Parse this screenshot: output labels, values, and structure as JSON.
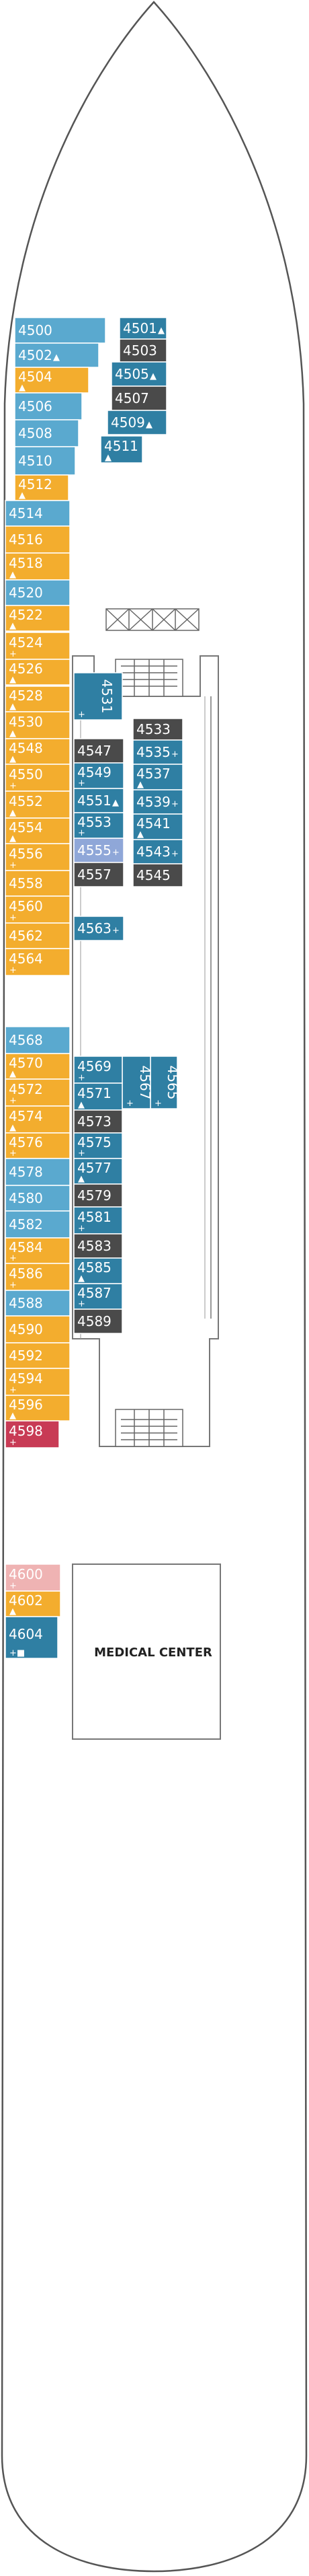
{
  "colors": {
    "blue": "#5aa9cf",
    "teal": "#2f7fa3",
    "dark": "#4a4a4a",
    "orange": "#f3ad2e",
    "pink": "#efb3b3",
    "red": "#c83b55",
    "lavender": "#8fa7d8",
    "hull": "#555555"
  },
  "areas": {
    "medical_center": "MEDICAL CENTER"
  },
  "cabins": [
    {
      "id": "4500",
      "color": "blue",
      "sym": ""
    },
    {
      "id": "4502",
      "color": "blue",
      "sym": "▲"
    },
    {
      "id": "4504",
      "color": "orange",
      "sym": "▲"
    },
    {
      "id": "4506",
      "color": "blue",
      "sym": ""
    },
    {
      "id": "4508",
      "color": "blue",
      "sym": ""
    },
    {
      "id": "4510",
      "color": "blue",
      "sym": ""
    },
    {
      "id": "4512",
      "color": "orange",
      "sym": "▲"
    },
    {
      "id": "4514",
      "color": "blue",
      "sym": ""
    },
    {
      "id": "4516",
      "color": "orange",
      "sym": ""
    },
    {
      "id": "4518",
      "color": "orange",
      "sym": "▲"
    },
    {
      "id": "4520",
      "color": "blue",
      "sym": ""
    },
    {
      "id": "4522",
      "color": "orange",
      "sym": "▲"
    },
    {
      "id": "4524",
      "color": "orange",
      "sym": "+"
    },
    {
      "id": "4526",
      "color": "orange",
      "sym": "▲"
    },
    {
      "id": "4528",
      "color": "orange",
      "sym": "▲"
    },
    {
      "id": "4530",
      "color": "orange",
      "sym": "▲"
    },
    {
      "id": "4548",
      "color": "orange",
      "sym": "▲"
    },
    {
      "id": "4550",
      "color": "orange",
      "sym": "+"
    },
    {
      "id": "4552",
      "color": "orange",
      "sym": "▲"
    },
    {
      "id": "4554",
      "color": "orange",
      "sym": "▲"
    },
    {
      "id": "4556",
      "color": "orange",
      "sym": "+"
    },
    {
      "id": "4558",
      "color": "orange",
      "sym": ""
    },
    {
      "id": "4560",
      "color": "orange",
      "sym": "+"
    },
    {
      "id": "4562",
      "color": "orange",
      "sym": ""
    },
    {
      "id": "4564",
      "color": "orange",
      "sym": "+"
    },
    {
      "id": "4568",
      "color": "blue",
      "sym": ""
    },
    {
      "id": "4570",
      "color": "orange",
      "sym": "▲"
    },
    {
      "id": "4572",
      "color": "orange",
      "sym": "+"
    },
    {
      "id": "4574",
      "color": "orange",
      "sym": "▲"
    },
    {
      "id": "4576",
      "color": "orange",
      "sym": "+"
    },
    {
      "id": "4578",
      "color": "blue",
      "sym": ""
    },
    {
      "id": "4580",
      "color": "blue",
      "sym": ""
    },
    {
      "id": "4582",
      "color": "blue",
      "sym": ""
    },
    {
      "id": "4584",
      "color": "orange",
      "sym": "+"
    },
    {
      "id": "4586",
      "color": "orange",
      "sym": "+"
    },
    {
      "id": "4588",
      "color": "blue",
      "sym": ""
    },
    {
      "id": "4590",
      "color": "orange",
      "sym": ""
    },
    {
      "id": "4592",
      "color": "orange",
      "sym": ""
    },
    {
      "id": "4594",
      "color": "orange",
      "sym": "+"
    },
    {
      "id": "4596",
      "color": "orange",
      "sym": "▲"
    },
    {
      "id": "4598",
      "color": "red",
      "sym": "+"
    },
    {
      "id": "4600",
      "color": "pink",
      "sym": "+"
    },
    {
      "id": "4602",
      "color": "orange",
      "sym": "▲"
    },
    {
      "id": "4604",
      "color": "teal",
      "sym": "+■"
    },
    {
      "id": "4501",
      "color": "teal",
      "sym": "▲"
    },
    {
      "id": "4503",
      "color": "dark",
      "sym": ""
    },
    {
      "id": "4505",
      "color": "teal",
      "sym": "▲"
    },
    {
      "id": "4507",
      "color": "dark",
      "sym": ""
    },
    {
      "id": "4509",
      "color": "teal",
      "sym": "▲"
    },
    {
      "id": "4511",
      "color": "teal",
      "sym": "▲"
    },
    {
      "id": "4531",
      "color": "teal",
      "sym": "+"
    },
    {
      "id": "4533",
      "color": "dark",
      "sym": ""
    },
    {
      "id": "4535",
      "color": "teal",
      "sym": "+"
    },
    {
      "id": "4537",
      "color": "teal",
      "sym": "▲"
    },
    {
      "id": "4539",
      "color": "teal",
      "sym": "+"
    },
    {
      "id": "4541",
      "color": "teal",
      "sym": "▲"
    },
    {
      "id": "4543",
      "color": "teal",
      "sym": "+"
    },
    {
      "id": "4545",
      "color": "dark",
      "sym": ""
    },
    {
      "id": "4547",
      "color": "dark",
      "sym": ""
    },
    {
      "id": "4549",
      "color": "teal",
      "sym": "+"
    },
    {
      "id": "4551",
      "color": "teal",
      "sym": "▲"
    },
    {
      "id": "4553",
      "color": "teal",
      "sym": "+"
    },
    {
      "id": "4555",
      "color": "lavender",
      "sym": "+"
    },
    {
      "id": "4557",
      "color": "dark",
      "sym": ""
    },
    {
      "id": "4563",
      "color": "teal",
      "sym": "+"
    },
    {
      "id": "4565",
      "color": "teal",
      "sym": "+"
    },
    {
      "id": "4567",
      "color": "teal",
      "sym": "+"
    },
    {
      "id": "4569",
      "color": "teal",
      "sym": "+"
    },
    {
      "id": "4571",
      "color": "teal",
      "sym": "▲"
    },
    {
      "id": "4573",
      "color": "dark",
      "sym": ""
    },
    {
      "id": "4575",
      "color": "teal",
      "sym": "+"
    },
    {
      "id": "4577",
      "color": "teal",
      "sym": "▲"
    },
    {
      "id": "4579",
      "color": "dark",
      "sym": ""
    },
    {
      "id": "4581",
      "color": "teal",
      "sym": "+"
    },
    {
      "id": "4583",
      "color": "dark",
      "sym": ""
    },
    {
      "id": "4585",
      "color": "teal",
      "sym": "▲"
    },
    {
      "id": "4587",
      "color": "teal",
      "sym": "+"
    },
    {
      "id": "4589",
      "color": "dark",
      "sym": ""
    }
  ]
}
